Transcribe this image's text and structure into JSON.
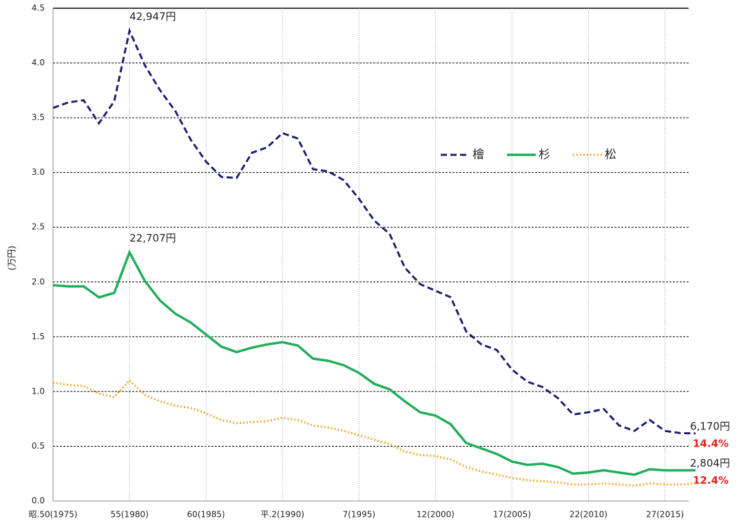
{
  "chart_data": {
    "type": "line",
    "ylabel": "(万円)",
    "x": [
      1975,
      1976,
      1977,
      1978,
      1979,
      1980,
      1981,
      1982,
      1983,
      1984,
      1985,
      1986,
      1987,
      1988,
      1989,
      1990,
      1991,
      1992,
      1993,
      1994,
      1995,
      1996,
      1997,
      1998,
      1999,
      2000,
      2001,
      2002,
      2003,
      2004,
      2005,
      2006,
      2007,
      2008,
      2009,
      2010,
      2011,
      2012,
      2013,
      2014,
      2015,
      2016,
      2017
    ],
    "xlim": [
      1975,
      2017
    ],
    "xticks": [
      {
        "value": 1975,
        "label": "昭.50(1975)"
      },
      {
        "value": 1980,
        "label": "55(1980)"
      },
      {
        "value": 1985,
        "label": "60(1985)"
      },
      {
        "value": 1990,
        "label": "平.2(1990)"
      },
      {
        "value": 1995,
        "label": "7(1995)"
      },
      {
        "value": 2000,
        "label": "12(2000)"
      },
      {
        "value": 2005,
        "label": "17(2005)"
      },
      {
        "value": 2010,
        "label": "22(2010)"
      },
      {
        "value": 2015,
        "label": "27(2015)"
      }
    ],
    "ylim": [
      0,
      4.5
    ],
    "yticks": [
      {
        "value": 0,
        "label": "0.0"
      },
      0.5,
      {
        "value": 1,
        "label": "1.0"
      },
      1.5,
      {
        "value": 2,
        "label": "2.0"
      },
      2.5,
      {
        "value": 3,
        "label": "3.0"
      },
      3.5,
      {
        "value": 4,
        "label": "4.0"
      },
      4.5
    ],
    "grid": true,
    "legend": "upper right",
    "series": [
      {
        "name": "檜",
        "color": "#1f1f6e",
        "line_style": "dashed",
        "ratio_label": "14.4%",
        "values": [
          3.59,
          3.64,
          3.66,
          3.45,
          3.65,
          4.2947,
          3.98,
          3.75,
          3.56,
          3.3,
          3.1,
          2.96,
          2.95,
          3.18,
          3.23,
          3.36,
          3.31,
          3.03,
          3.01,
          2.93,
          2.76,
          2.56,
          2.44,
          2.13,
          1.98,
          1.92,
          1.86,
          1.55,
          1.43,
          1.38,
          1.2,
          1.09,
          1.04,
          0.94,
          0.79,
          0.81,
          0.84,
          0.69,
          0.64,
          0.74,
          0.64,
          0.62,
          0.617
        ],
        "value_labels": [
          null,
          null,
          null,
          null,
          null,
          "42,947円",
          null,
          null,
          null,
          null,
          null,
          null,
          null,
          null,
          null,
          null,
          null,
          null,
          null,
          null,
          null,
          null,
          null,
          null,
          null,
          null,
          null,
          null,
          null,
          null,
          null,
          null,
          null,
          null,
          null,
          null,
          null,
          null,
          null,
          null,
          null,
          null,
          "6,170円"
        ]
      },
      {
        "name": "杉",
        "color": "#1fae5a",
        "line_style": "solid",
        "ratio_label": "12.4%",
        "values": [
          1.97,
          1.96,
          1.96,
          1.86,
          1.9,
          2.2707,
          2.01,
          1.83,
          1.71,
          1.63,
          1.52,
          1.41,
          1.36,
          1.4,
          1.43,
          1.45,
          1.42,
          1.3,
          1.28,
          1.24,
          1.17,
          1.07,
          1.02,
          0.91,
          0.81,
          0.78,
          0.7,
          0.53,
          0.48,
          0.43,
          0.36,
          0.33,
          0.34,
          0.31,
          0.25,
          0.26,
          0.28,
          0.26,
          0.24,
          0.29,
          0.28,
          0.28,
          0.2804
        ],
        "value_labels": [
          null,
          null,
          null,
          null,
          null,
          "22,707円",
          null,
          null,
          null,
          null,
          null,
          null,
          null,
          null,
          null,
          null,
          null,
          null,
          null,
          null,
          null,
          null,
          null,
          null,
          null,
          null,
          null,
          null,
          null,
          null,
          null,
          null,
          null,
          null,
          null,
          null,
          null,
          null,
          null,
          null,
          null,
          null,
          "2,804円"
        ]
      },
      {
        "name": "松",
        "color": "#f0a830",
        "line_style": "dotted",
        "values": [
          1.08,
          1.06,
          1.05,
          0.98,
          0.95,
          1.1,
          0.97,
          0.91,
          0.87,
          0.85,
          0.8,
          0.74,
          0.71,
          0.72,
          0.73,
          0.76,
          0.74,
          0.69,
          0.67,
          0.64,
          0.6,
          0.56,
          0.52,
          0.45,
          0.42,
          0.41,
          0.38,
          0.31,
          0.27,
          0.24,
          0.21,
          0.19,
          0.18,
          0.17,
          0.15,
          0.15,
          0.16,
          0.15,
          0.14,
          0.16,
          0.15,
          0.15,
          0.16
        ]
      }
    ]
  }
}
